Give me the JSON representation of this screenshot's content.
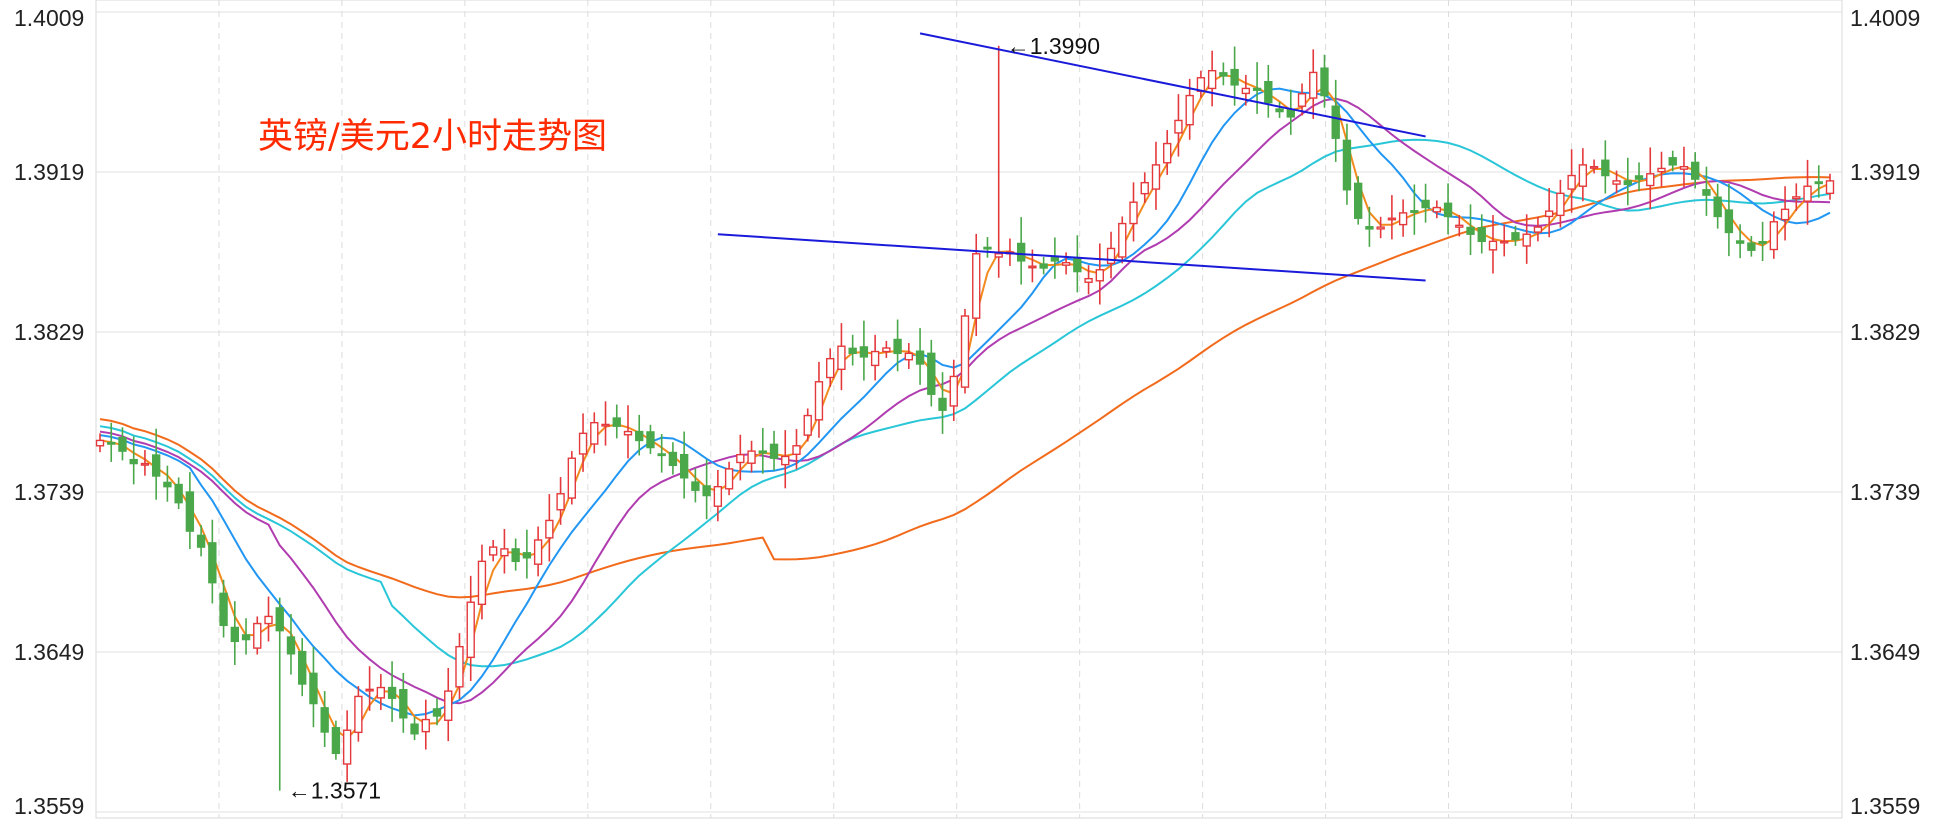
{
  "chart_data": {
    "type": "candlestick",
    "title": "英镑/美元2小时走势图",
    "ylim": [
      1.3559,
      1.4009
    ],
    "yticks": [
      "1.4009",
      "1.3919",
      "1.3829",
      "1.3739",
      "1.3649",
      "1.3559"
    ],
    "grid": true,
    "colors": {
      "up": "#e4393c",
      "down": "#4aa84a",
      "ma_short": "#f28a1e",
      "ma_blue": "#2196f3",
      "ma_purple": "#b03cb0",
      "ma_cyan": "#29c6d8",
      "ma_long": "#f26a1b",
      "channel": "#1a1adb"
    },
    "annotations": [
      {
        "text": "←1.3990",
        "index": 80,
        "value": 1.399
      },
      {
        "text": "←1.3571",
        "index": 16,
        "value": 1.3571
      }
    ],
    "channel_lines": [
      {
        "from": {
          "index": 73,
          "value": 1.3997
        },
        "to": {
          "index": 118,
          "value": 1.3939
        }
      },
      {
        "from": {
          "index": 55,
          "value": 1.3884
        },
        "to": {
          "index": 118,
          "value": 1.3858
        }
      }
    ],
    "closes": [
      1.3768,
      1.3766,
      1.3762,
      1.3755,
      1.3755,
      1.3748,
      1.3742,
      1.3733,
      1.3717,
      1.3708,
      1.3688,
      1.3664,
      1.3655,
      1.3656,
      1.3665,
      1.3669,
      1.3661,
      1.3648,
      1.3631,
      1.362,
      1.3604,
      1.3592,
      1.3605,
      1.3624,
      1.3628,
      1.3629,
      1.3623,
      1.3612,
      1.3603,
      1.3611,
      1.3613,
      1.3627,
      1.3652,
      1.3677,
      1.37,
      1.3708,
      1.3707,
      1.37,
      1.3702,
      1.3712,
      1.3723,
      1.3738,
      1.3758,
      1.3772,
      1.3778,
      1.3777,
      1.3776,
      1.3773,
      1.3768,
      1.3764,
      1.376,
      1.3754,
      1.3747,
      1.374,
      1.3737,
      1.3742,
      1.3752,
      1.376,
      1.3762,
      1.3761,
      1.3758,
      1.3759,
      1.3765,
      1.3782,
      1.3801,
      1.3814,
      1.3821,
      1.3817,
      1.3815,
      1.3818,
      1.382,
      1.3817,
      1.3817,
      1.3811,
      1.3794,
      1.3785,
      1.3804,
      1.3838,
      1.3873,
      1.3876,
      1.3873,
      1.3874,
      1.3869,
      1.3866,
      1.3865,
      1.3869,
      1.3868,
      1.3863,
      1.3859,
      1.3864,
      1.3876,
      1.389,
      1.3902,
      1.3913,
      1.3923,
      1.3935,
      1.3948,
      1.3962,
      1.3972,
      1.3976,
      1.3973,
      1.3968,
      1.3966,
      1.3965,
      1.3958,
      1.3953,
      1.395,
      1.3963,
      1.3975,
      1.3962,
      1.3938,
      1.3909,
      1.3893,
      1.3887,
      1.3888,
      1.3893,
      1.3896,
      1.3897,
      1.3899,
      1.3899,
      1.3894,
      1.3889,
      1.3884,
      1.388,
      1.388,
      1.388,
      1.3881,
      1.3884,
      1.3888,
      1.3897,
      1.3907,
      1.3917,
      1.3923,
      1.3922,
      1.3917,
      1.3914,
      1.3912,
      1.3915,
      1.3918,
      1.3921,
      1.3923,
      1.3922,
      1.3915,
      1.3906,
      1.3894,
      1.3885,
      1.3879,
      1.3875,
      1.3879,
      1.3891,
      1.3898,
      1.3905,
      1.3911,
      1.3913,
      1.3914
    ]
  }
}
